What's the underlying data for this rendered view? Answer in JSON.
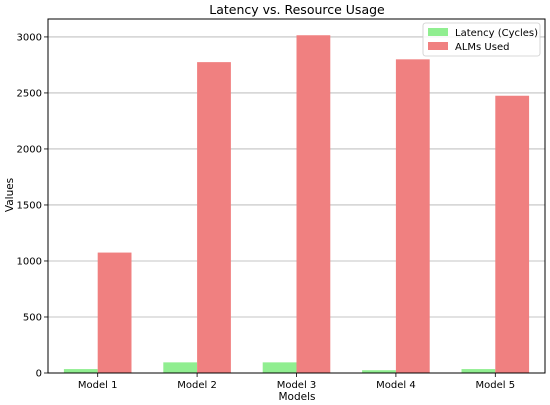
{
  "chart_data": {
    "type": "bar",
    "title": "Latency vs. Resource Usage",
    "xlabel": "Models",
    "ylabel": "Values",
    "categories": [
      "Model 1",
      "Model 2",
      "Model 3",
      "Model 4",
      "Model 5"
    ],
    "series": [
      {
        "name": "Latency (Cycles)",
        "color": "#90ee90",
        "values": [
          35,
          95,
          95,
          25,
          35
        ]
      },
      {
        "name": "ALMs Used",
        "color": "#f08080",
        "values": [
          1075,
          2775,
          3015,
          2800,
          2475
        ]
      }
    ],
    "ylim": [
      0,
      3160
    ],
    "yticks": [
      0,
      500,
      1000,
      1500,
      2000,
      2500,
      3000
    ],
    "grid": "horizontal",
    "legend_position": "top-right"
  }
}
